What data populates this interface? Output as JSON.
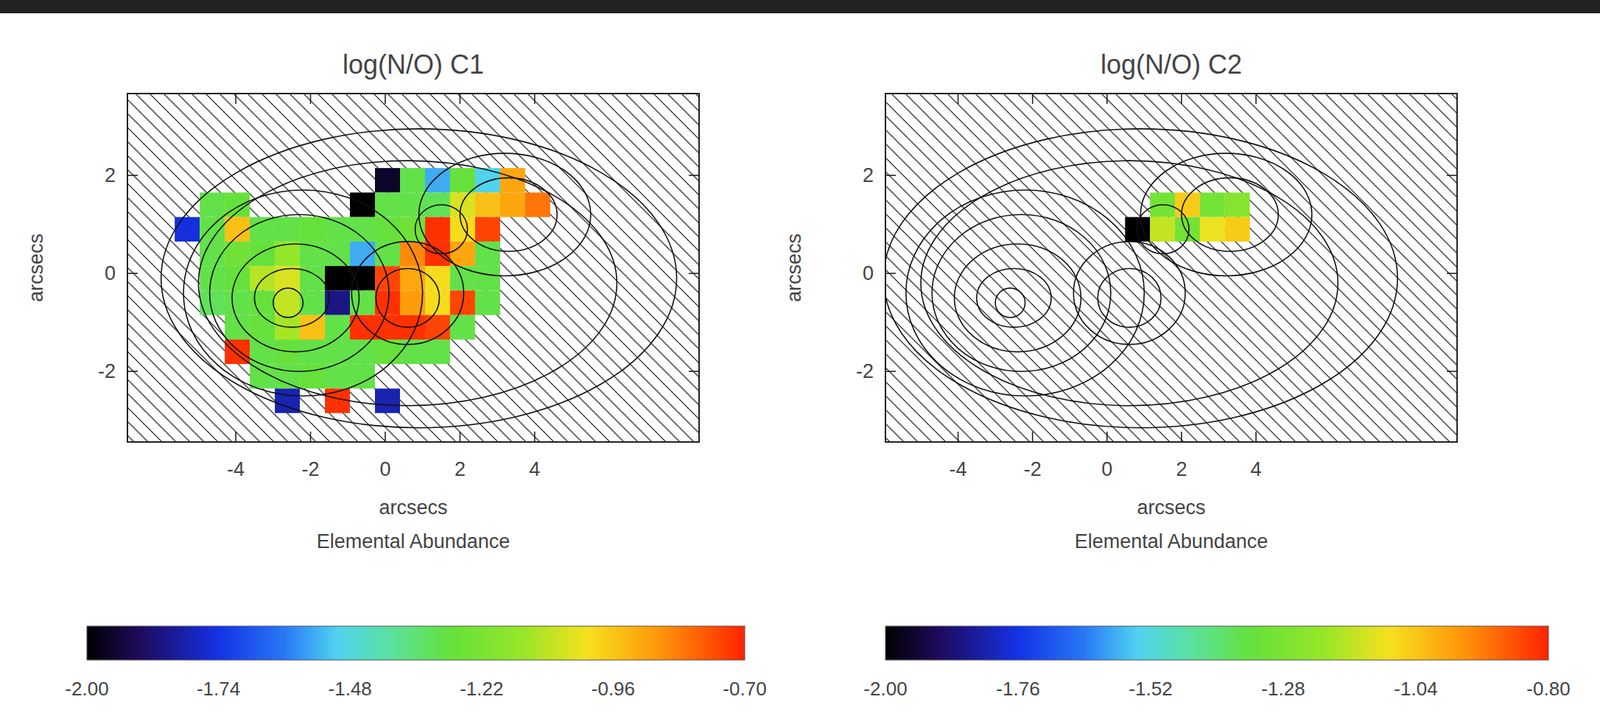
{
  "chart_data": [
    {
      "type": "heatmap",
      "title": "log(N/O) C1",
      "x_label": "arcsecs",
      "y_label": "arcsecs",
      "annotations": [
        "Elemental Abundance"
      ],
      "xlim": [
        -6.9,
        8.4
      ],
      "ylim": [
        -3.44,
        3.67
      ],
      "xticks": [
        -4,
        -2,
        0,
        2,
        4
      ],
      "yticks": [
        -2,
        0,
        2
      ],
      "x": [
        -5.3,
        -4.63,
        -3.96,
        -3.29,
        -2.62,
        -1.95,
        -1.28,
        -0.61,
        0.06,
        0.73,
        1.4,
        2.07,
        2.74,
        3.41,
        4.08
      ],
      "y": [
        1.9,
        1.4,
        0.9,
        0.4,
        -0.1,
        -0.6,
        -1.1,
        -1.6,
        -2.1,
        -2.6
      ],
      "values": [
        [
          null,
          null,
          null,
          null,
          null,
          null,
          null,
          null,
          -1.95,
          -1.3,
          -1.55,
          -1.28,
          -1.5,
          -0.9,
          null
        ],
        [
          null,
          -1.3,
          -1.28,
          null,
          null,
          null,
          null,
          -2.0,
          -1.3,
          -1.3,
          -1.32,
          -1.05,
          -0.95,
          -0.9,
          -0.82
        ],
        [
          -1.75,
          -1.3,
          -0.95,
          -1.3,
          -1.3,
          -1.28,
          -1.3,
          -1.3,
          -1.28,
          -1.25,
          -0.72,
          -1.0,
          -0.75,
          null,
          null
        ],
        [
          null,
          -1.3,
          -1.25,
          -1.28,
          -1.15,
          -1.3,
          -1.3,
          -1.55,
          -1.3,
          -0.85,
          -0.72,
          -0.9,
          -1.3,
          null,
          null
        ],
        [
          null,
          -1.3,
          -1.28,
          -1.1,
          -1.05,
          -1.3,
          -2.0,
          -2.0,
          -0.75,
          -0.9,
          -1.0,
          -1.3,
          -1.3,
          null,
          null
        ],
        [
          null,
          -1.32,
          -1.3,
          -1.28,
          -1.08,
          -1.3,
          -1.85,
          -1.3,
          -0.72,
          -0.88,
          -1.0,
          -0.75,
          -1.3,
          null,
          null
        ],
        [
          null,
          null,
          -1.3,
          -1.28,
          -1.12,
          -0.95,
          -1.3,
          -0.72,
          -0.72,
          -0.72,
          -0.75,
          -1.3,
          null,
          null,
          null
        ],
        [
          null,
          null,
          -0.72,
          -1.3,
          -1.28,
          -1.3,
          -1.3,
          -1.3,
          -1.28,
          -1.3,
          -1.3,
          null,
          null,
          null,
          null
        ],
        [
          null,
          null,
          null,
          -1.3,
          -1.3,
          -1.28,
          -1.3,
          -1.3,
          null,
          null,
          null,
          null,
          null,
          null,
          null
        ],
        [
          null,
          null,
          null,
          null,
          -1.8,
          null,
          -0.72,
          null,
          -1.8,
          null,
          null,
          null,
          null,
          null,
          null
        ]
      ],
      "colorbar": {
        "range": [
          -2.0,
          -0.7
        ],
        "ticks": [
          {
            "value": -2.0,
            "label": "-2.00"
          },
          {
            "value": -1.74,
            "label": "-1.74"
          },
          {
            "value": -1.48,
            "label": "-1.48"
          },
          {
            "value": -1.22,
            "label": "-1.22"
          },
          {
            "value": -0.96,
            "label": "-0.96"
          },
          {
            "value": -0.7,
            "label": "-0.70"
          }
        ]
      }
    },
    {
      "type": "heatmap",
      "title": "log(N/O) C2",
      "x_label": "arcsecs",
      "y_label": "arcsecs",
      "annotations": [
        "Elemental Abundance"
      ],
      "xlim": [
        -5.95,
        9.4
      ],
      "ylim": [
        -3.44,
        3.67
      ],
      "xticks": [
        -4,
        -2,
        0,
        2,
        4
      ],
      "yticks": [
        -2,
        0,
        2
      ],
      "x": [
        0.82,
        1.49,
        2.16,
        2.83,
        3.5
      ],
      "y": [
        1.4,
        0.9
      ],
      "values": [
        [
          null,
          -1.3,
          -1.05,
          -1.3,
          -1.25
        ],
        [
          -2.0,
          -1.15,
          -1.3,
          -1.1,
          -1.05
        ]
      ],
      "colorbar": {
        "range": [
          -2.0,
          -0.8
        ],
        "ticks": [
          {
            "value": -2.0,
            "label": "-2.00"
          },
          {
            "value": -1.76,
            "label": "-1.76"
          },
          {
            "value": -1.52,
            "label": "-1.52"
          },
          {
            "value": -1.28,
            "label": "-1.28"
          },
          {
            "value": -1.04,
            "label": "-1.04"
          },
          {
            "value": -0.8,
            "label": "-0.80"
          }
        ]
      }
    }
  ]
}
